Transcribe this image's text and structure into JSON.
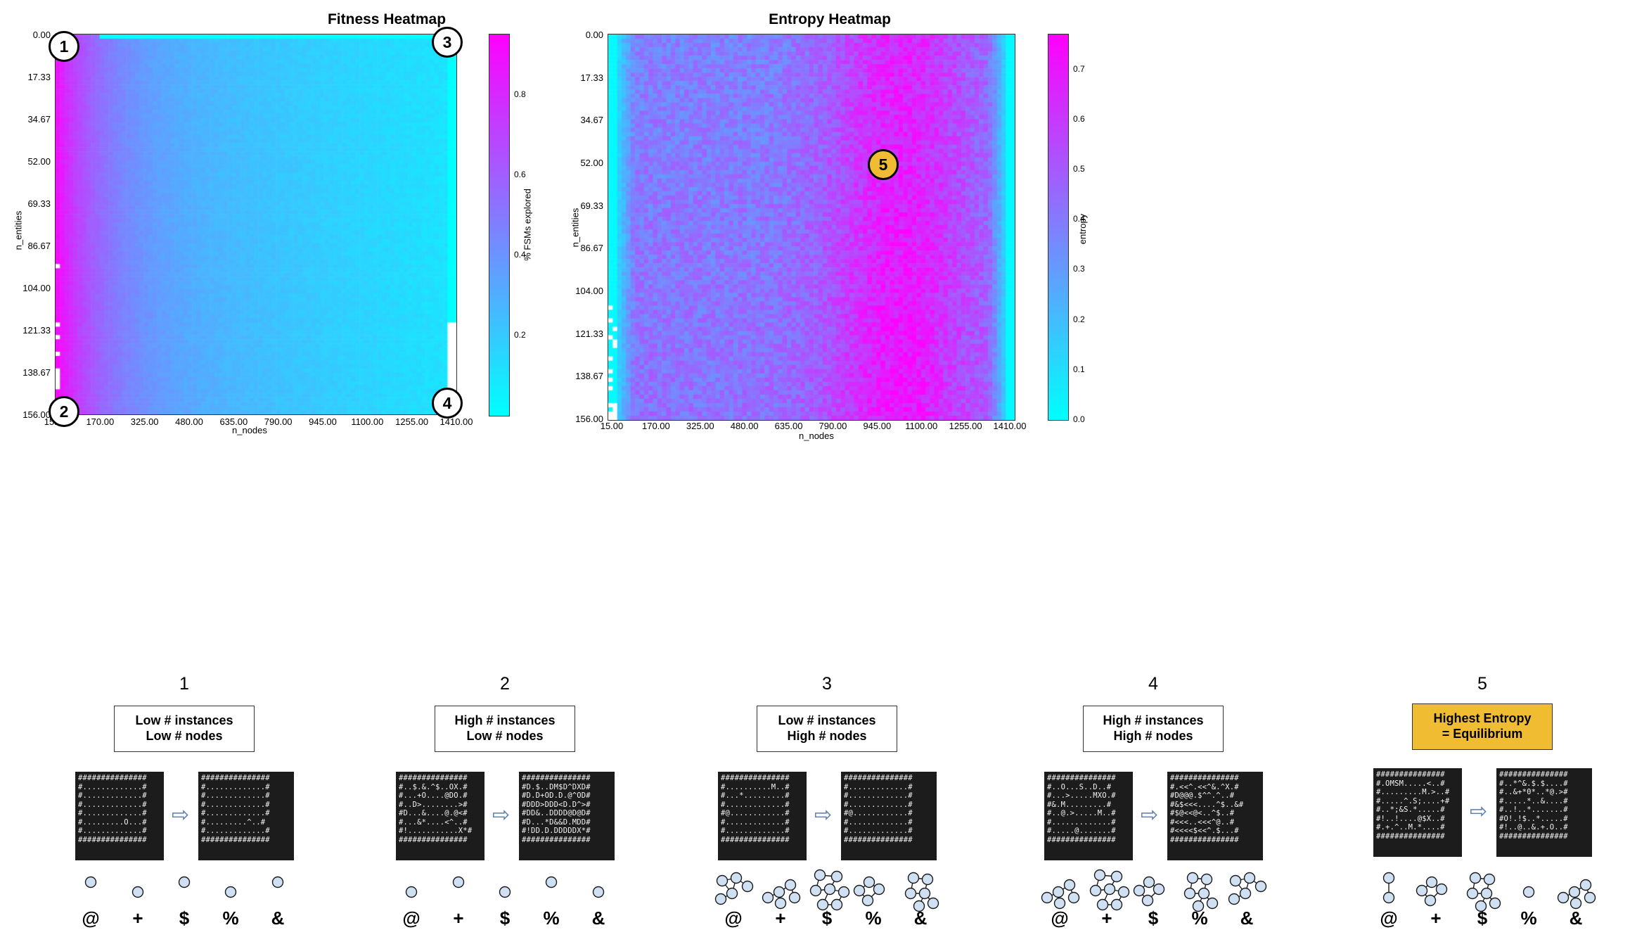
{
  "fitness_panel": {
    "title": "Fitness Heatmap",
    "xlabel": "n_nodes",
    "ylabel": "n_entities",
    "colorbar_label": "% FSMs explored",
    "x_ticks": [
      "15.00",
      "170.00",
      "325.00",
      "480.00",
      "635.00",
      "790.00",
      "945.00",
      "1100.00",
      "1255.00",
      "1410.00"
    ],
    "y_ticks": [
      "0.00",
      "17.33",
      "34.67",
      "52.00",
      "69.33",
      "86.67",
      "104.00",
      "121.33",
      "138.67",
      "156.00"
    ],
    "colorbar_ticks": [
      "0.8",
      "0.6",
      "0.4",
      "0.2"
    ],
    "markers": [
      "1",
      "2",
      "3",
      "4"
    ]
  },
  "entropy_panel": {
    "title": "Entropy Heatmap",
    "xlabel": "n_nodes",
    "ylabel": "n_entities",
    "colorbar_label": "entropy",
    "x_ticks": [
      "15.00",
      "170.00",
      "325.00",
      "480.00",
      "635.00",
      "790.00",
      "945.00",
      "1100.00",
      "1255.00",
      "1410.00"
    ],
    "y_ticks": [
      "0.00",
      "17.33",
      "34.67",
      "52.00",
      "69.33",
      "86.67",
      "104.00",
      "121.33",
      "138.67",
      "156.00"
    ],
    "colorbar_ticks": [
      "0.7",
      "0.6",
      "0.5",
      "0.4",
      "0.3",
      "0.2",
      "0.1",
      "0.0"
    ],
    "markers": [
      "5"
    ]
  },
  "chart_data": [
    {
      "type": "heatmap",
      "title": "Fitness Heatmap",
      "xlabel": "n_nodes",
      "ylabel": "n_entities",
      "xlim": [
        15,
        1410
      ],
      "ylim": [
        0,
        156
      ],
      "colorbar": {
        "label": "% FSMs explored",
        "range": [
          0.0,
          0.95
        ],
        "colormap": "cool"
      },
      "trend": "Highest values (about 0.7-0.9) at low n_nodes near the left edge; values fall to about 0.3 at mid n_nodes and to near 0.0 at the highest n_nodes and lowest n_entities."
    },
    {
      "type": "heatmap",
      "title": "Entropy Heatmap",
      "xlabel": "n_nodes",
      "ylabel": "n_entities",
      "xlim": [
        15,
        1410
      ],
      "ylim": [
        0,
        156
      ],
      "colorbar": {
        "label": "entropy",
        "range": [
          0.0,
          0.77
        ],
        "colormap": "cool"
      },
      "trend": "Near 0.0 at both the lowest and highest n_nodes edges; rises to about 0.6-0.75 in a band between roughly n_nodes 790 and 1200, strongest at mid-to-high n_entities."
    }
  ],
  "columns": [
    {
      "number": "1",
      "label_lines": [
        "Low # instances",
        "Low # nodes"
      ],
      "highlight": false,
      "grid_before": "###############\n#.............#\n#.............#\n#.............#\n#.............#\n#.........O...#\n#.............#\n###############",
      "grid_after": "###############\n#.............#\n#.............#\n#.............#\n#.............#\n#.........^..#\n#.............#\n###############",
      "symbols": [
        "@",
        "+",
        "$",
        "%",
        "&"
      ]
    },
    {
      "number": "2",
      "label_lines": [
        "High # instances",
        "Low # nodes"
      ],
      "highlight": false,
      "grid_before": "###############\n#..$.&.^$..OX.#\n#...+O....@DO.#\n#..D>........>#\n#D...&....@.@<#\n#...&*....<^..#\n#!...........X*#\n###############",
      "grid_after": "###############\n#D.$..DM$D^DXD#\n#D.D+OD.D.@^OD#\n#DDD>DDD<D.D^>#\n#DD&..DDDD@D@D#\n#D...*D&&D.MDD#\n#!DD.D.DDDDDX*#\n###############",
      "symbols": [
        "@",
        "+",
        "$",
        "%",
        "&"
      ]
    },
    {
      "number": "3",
      "label_lines": [
        "Low # instances",
        "High # nodes"
      ],
      "highlight": false,
      "grid_before": "###############\n#..........M..#\n#...*.........#\n#.............#\n#@............#\n#.............#\n#.............#\n###############",
      "grid_after": "###############\n#.............#\n#.............#\n#.............#\n#@............#\n#.............#\n#.............#\n###############",
      "symbols": [
        "@",
        "+",
        "$",
        "%",
        "&"
      ]
    },
    {
      "number": "4",
      "label_lines": [
        "High # instances",
        "High # nodes"
      ],
      "highlight": false,
      "grid_before": "###############\n#..O...S..D..#\n#...>.....MXO.#\n#&.M.........#\n#..@.>.....M..#\n#.............#\n#.....@.......#\n###############",
      "grid_after": "###############\n#.<<^.<<^&.^X.#\n#D@@@.$^^.^..#\n#&$<<<....^$..&#\n#$@<<@<..^$..#\n#<<<..<<<^@..#\n#<<<<$<<^.$...#\n###############",
      "symbols": [
        "@",
        "+",
        "$",
        "%",
        "&"
      ]
    },
    {
      "number": "5",
      "label_lines": [
        "Highest Entropy",
        "= Equilibrium"
      ],
      "highlight": true,
      "grid_before": "###############\n#.OMSM.....<..#\n#.........M.>..#\n#.....^.S;....+#\n#..*;&S.*.....#\n#!..!....@$X..#\n#.+.^..M.*....#\n###############",
      "grid_after": "###############\n#..*^&.$.$....#\n#..&+*0*..*@.>#\n#.....*..&....#\n#..!..*.......#\n#O!.!$..*.....#\n#!..@..&.+.O..#\n###############",
      "symbols": [
        "@",
        "+",
        "$",
        "%",
        "&"
      ]
    }
  ]
}
